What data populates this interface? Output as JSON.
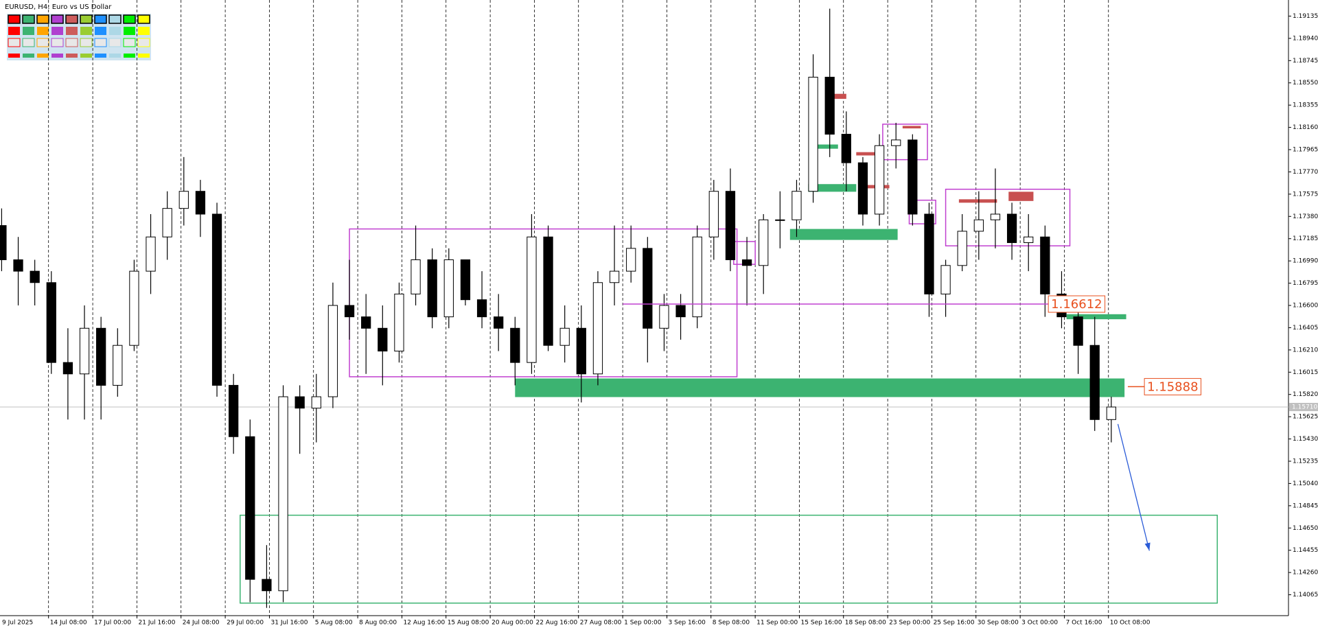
{
  "chart_data": {
    "type": "candlestick",
    "title": "EURUSD, H4:  Euro vs US Dollar",
    "open": [
      1.173,
      1.17,
      1.169,
      1.168,
      1.161,
      1.16,
      1.164,
      1.159,
      1.1625,
      1.169,
      1.172,
      1.1745,
      1.176,
      1.174,
      1.159,
      1.1545,
      1.142,
      1.141,
      1.158,
      1.157,
      1.158,
      1.166,
      1.165,
      1.164,
      1.162,
      1.167,
      1.17,
      1.165,
      1.17,
      1.1665,
      1.165,
      1.164,
      1.161,
      1.172,
      1.1625,
      1.164,
      1.16,
      1.168,
      1.169,
      1.171,
      1.164,
      1.166,
      1.165,
      1.172,
      1.176,
      1.17,
      1.1695,
      1.1735,
      1.1735,
      1.176,
      1.186,
      1.181,
      1.1785,
      1.174,
      1.18,
      1.1805,
      1.174,
      1.167,
      1.1695,
      1.1725,
      1.1735,
      1.174,
      1.1715,
      1.172,
      1.167,
      1.165,
      1.1625,
      1.156
    ],
    "high": [
      1.1745,
      1.172,
      1.17,
      1.169,
      1.164,
      1.166,
      1.165,
      1.164,
      1.17,
      1.174,
      1.176,
      1.179,
      1.177,
      1.175,
      1.16,
      1.156,
      1.145,
      1.159,
      1.159,
      1.16,
      1.168,
      1.17,
      1.167,
      1.166,
      1.168,
      1.173,
      1.171,
      1.171,
      1.17,
      1.169,
      1.167,
      1.165,
      1.174,
      1.173,
      1.166,
      1.166,
      1.169,
      1.173,
      1.173,
      1.172,
      1.167,
      1.167,
      1.173,
      1.177,
      1.178,
      1.172,
      1.174,
      1.176,
      1.177,
      1.188,
      1.192,
      1.183,
      1.179,
      1.181,
      1.182,
      1.181,
      1.175,
      1.17,
      1.174,
      1.176,
      1.178,
      1.175,
      1.174,
      1.173,
      1.169,
      1.166,
      1.165,
      1.158
    ],
    "low": [
      1.169,
      1.166,
      1.166,
      1.16,
      1.156,
      1.156,
      1.156,
      1.158,
      1.162,
      1.167,
      1.17,
      1.173,
      1.172,
      1.158,
      1.153,
      1.14,
      1.1395,
      1.14,
      1.153,
      1.154,
      1.157,
      1.163,
      1.16,
      1.159,
      1.161,
      1.166,
      1.164,
      1.164,
      1.166,
      1.164,
      1.162,
      1.159,
      1.16,
      1.162,
      1.161,
      1.1575,
      1.159,
      1.166,
      1.168,
      1.161,
      1.162,
      1.163,
      1.164,
      1.17,
      1.169,
      1.166,
      1.167,
      1.171,
      1.172,
      1.175,
      1.179,
      1.176,
      1.173,
      1.173,
      1.178,
      1.173,
      1.165,
      1.165,
      1.169,
      1.17,
      1.171,
      1.17,
      1.169,
      1.165,
      1.164,
      1.16,
      1.155,
      1.154
    ],
    "close": [
      1.17,
      1.169,
      1.168,
      1.161,
      1.16,
      1.164,
      1.159,
      1.1625,
      1.169,
      1.172,
      1.1745,
      1.176,
      1.174,
      1.159,
      1.1545,
      1.142,
      1.141,
      1.158,
      1.157,
      1.158,
      1.166,
      1.165,
      1.164,
      1.162,
      1.167,
      1.17,
      1.165,
      1.17,
      1.1665,
      1.165,
      1.164,
      1.161,
      1.172,
      1.1625,
      1.164,
      1.16,
      1.168,
      1.169,
      1.171,
      1.164,
      1.166,
      1.165,
      1.172,
      1.176,
      1.17,
      1.1695,
      1.1735,
      1.1735,
      1.176,
      1.186,
      1.181,
      1.1785,
      1.174,
      1.18,
      1.1805,
      1.174,
      1.167,
      1.1695,
      1.1725,
      1.1735,
      1.174,
      1.1715,
      1.172,
      1.167,
      1.165,
      1.1625,
      1.156,
      1.1571
    ],
    "up_color": "#ffffff",
    "down_color": "#000000",
    "xlim": [
      0.4,
      78.2
    ],
    "ylim": [
      1.13882,
      1.19276
    ],
    "grid": true,
    "xticks": [
      {
        "value": 0,
        "label": "9 Jul 2025"
      },
      {
        "value": 3.33,
        "label": "14 Jul 08:00"
      },
      {
        "value": 6,
        "label": "17 Jul 00:00"
      },
      {
        "value": 8.67,
        "label": "21 Jul 16:00"
      },
      {
        "value": 11.33,
        "label": "24 Jul 08:00"
      },
      {
        "value": 14,
        "label": "29 Jul 00:00"
      },
      {
        "value": 16.67,
        "label": "31 Jul 16:00"
      },
      {
        "value": 19.33,
        "label": "5 Aug 08:00"
      },
      {
        "value": 22,
        "label": "8 Aug 00:00"
      },
      {
        "value": 24.67,
        "label": "12 Aug 16:00"
      },
      {
        "value": 27.33,
        "label": "15 Aug 08:00"
      },
      {
        "value": 30,
        "label": "20 Aug 00:00"
      },
      {
        "value": 32.67,
        "label": "22 Aug 16:00"
      },
      {
        "value": 35.33,
        "label": "27 Aug 08:00"
      },
      {
        "value": 38,
        "label": "1 Sep 00:00"
      },
      {
        "value": 40.67,
        "label": "3 Sep 16:00"
      },
      {
        "value": 43.33,
        "label": "8 Sep 08:00"
      },
      {
        "value": 46,
        "label": "11 Sep 00:00"
      },
      {
        "value": 48.67,
        "label": "15 Sep 16:00"
      },
      {
        "value": 51.33,
        "label": "18 Sep 08:00"
      },
      {
        "value": 54,
        "label": "23 Sep 00:00"
      },
      {
        "value": 56.67,
        "label": "25 Sep 16:00"
      },
      {
        "value": 59.33,
        "label": "30 Sep 08:00"
      },
      {
        "value": 62,
        "label": "3 Oct 00:00"
      },
      {
        "value": 64.67,
        "label": "7 Oct 16:00"
      },
      {
        "value": 67.33,
        "label": "10 Oct 08:00"
      }
    ],
    "yticks": [
      1.14065,
      {
        "value": 1.1426,
        "label": "1.14260"
      },
      1.14455,
      {
        "value": 1.1465,
        "label": "1.14650"
      },
      1.14845,
      {
        "value": 1.1504,
        "label": "1.15040"
      },
      1.15235,
      {
        "value": 1.1543,
        "label": "1.15430"
      },
      1.15625,
      {
        "value": 1.1582,
        "label": "1.15820"
      },
      1.16015,
      {
        "value": 1.1621,
        "label": "1.16210"
      },
      1.16405,
      {
        "value": 1.166,
        "label": "1.16600"
      },
      1.16795,
      {
        "value": 1.1699,
        "label": "1.16990"
      },
      1.17185,
      {
        "value": 1.1738,
        "label": "1.17380"
      },
      1.17575,
      {
        "value": 1.1777,
        "label": "1.17770"
      },
      1.17965,
      {
        "value": 1.1816,
        "label": "1.18160"
      },
      1.18355,
      {
        "value": 1.1855,
        "label": "1.18550"
      },
      1.18745,
      {
        "value": 1.1894,
        "label": "1.18940"
      },
      1.19135
    ],
    "current_price": {
      "value": 1.1571,
      "label": "1.15710"
    },
    "zones": [
      {
        "x": [
          21.5,
          44.9
        ],
        "y": [
          1.15975,
          1.1727
        ],
        "color": "#c040d0",
        "filled": false
      },
      {
        "x": [
          44.7,
          46.0
        ],
        "y": [
          1.1696,
          1.1716
        ],
        "color": "#c040d0",
        "filled": false
      },
      {
        "x": [
          53.7,
          56.4
        ],
        "y": [
          1.17877,
          1.18188
        ],
        "color": "#c040d0",
        "filled": false
      },
      {
        "x": [
          55.3,
          56.9
        ],
        "y": [
          1.17315,
          1.17522
        ],
        "color": "#c040d0",
        "filled": false
      },
      {
        "x": [
          57.5,
          65.0
        ],
        "y": [
          1.17122,
          1.17618
        ],
        "color": "#c040d0",
        "filled": false
      },
      {
        "x": [
          31.5,
          68.3
        ],
        "y": [
          1.15797,
          1.1596
        ],
        "color": "#3cb371",
        "filled": true
      },
      {
        "x": [
          14.9,
          73.9
        ],
        "y": [
          1.13992,
          1.14762
        ],
        "color": "#3cb371",
        "filled": false
      },
      {
        "x": [
          48.1,
          54.6
        ],
        "y": [
          1.17174,
          1.1727
        ],
        "color": "#3cb371",
        "filled": true
      },
      {
        "x": [
          49.2,
          52.1
        ],
        "y": [
          1.17596,
          1.17663
        ],
        "color": "#3cb371",
        "filled": true
      },
      {
        "x": [
          49.4,
          51.0
        ],
        "y": [
          1.17973,
          1.1801
        ],
        "color": "#3cb371",
        "filled": true
      },
      {
        "x": [
          64.8,
          68.4
        ],
        "y": [
          1.16479,
          1.16523
        ],
        "color": "#3cb371",
        "filled": true
      },
      {
        "x": [
          50.7,
          51.5
        ],
        "y": [
          1.1841,
          1.18454
        ],
        "color": "#c85050",
        "filled": true
      },
      {
        "x": [
          52.1,
          53.7
        ],
        "y": [
          1.17914,
          1.17943
        ],
        "color": "#c85050",
        "filled": true
      },
      {
        "x": [
          52.5,
          54.1
        ],
        "y": [
          1.17626,
          1.17655
        ],
        "color": "#c85050",
        "filled": true
      },
      {
        "x": [
          54.9,
          56.0
        ],
        "y": [
          1.18151,
          1.18173
        ],
        "color": "#c85050",
        "filled": true
      },
      {
        "x": [
          58.3,
          60.6
        ],
        "y": [
          1.175,
          1.1753
        ],
        "color": "#c85050",
        "filled": true
      },
      {
        "x": [
          61.3,
          62.8
        ],
        "y": [
          1.17515,
          1.17596
        ],
        "color": "#c85050",
        "filled": true
      }
    ],
    "levels": [
      {
        "value": 1.16612,
        "x": [
          38.0,
          63.7
        ],
        "color": "#c040d0"
      },
      {
        "value": 1.15888,
        "x": [
          68.5,
          69.5
        ],
        "color": "#e8501e"
      }
    ],
    "arrow": {
      "x": [
        67.9,
        69.8
      ],
      "y": [
        1.15561,
        1.14451
      ],
      "color": "#2a5bd7"
    }
  }
}
